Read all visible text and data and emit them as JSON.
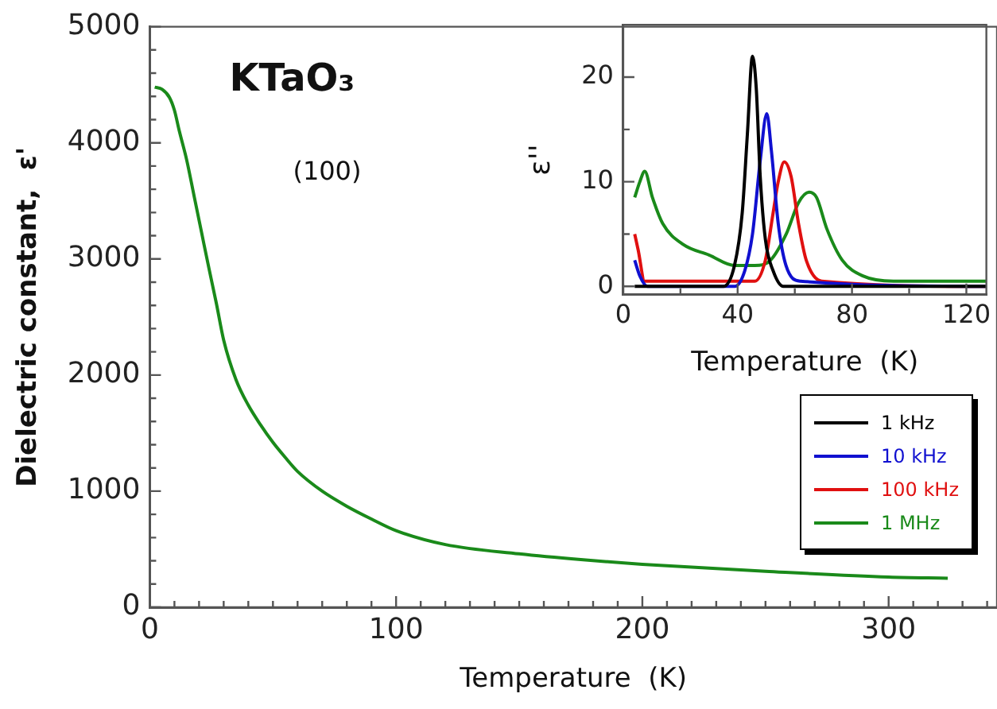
{
  "chart_data": [
    {
      "type": "line",
      "xlabel": "Temperature  (K)",
      "ylabel": "Dielectric constant,  ε'",
      "annotations": [
        "KTaO₃",
        "(100)"
      ],
      "xlim": [
        0,
        344
      ],
      "ylim": [
        0,
        5000
      ],
      "xticks": [
        0,
        {
          "value": 10,
          "label": null
        },
        {
          "value": 20,
          "label": null
        },
        {
          "value": 30,
          "label": null
        },
        {
          "value": 40,
          "label": null
        },
        {
          "value": 50,
          "label": null
        },
        {
          "value": 60,
          "label": null
        },
        {
          "value": 70,
          "label": null
        },
        {
          "value": 80,
          "label": null
        },
        {
          "value": 90,
          "label": null
        },
        100,
        {
          "value": 110,
          "label": null
        },
        {
          "value": 120,
          "label": null
        },
        {
          "value": 130,
          "label": null
        },
        {
          "value": 140,
          "label": null
        },
        {
          "value": 150,
          "label": null
        },
        {
          "value": 160,
          "label": null
        },
        {
          "value": 170,
          "label": null
        },
        {
          "value": 180,
          "label": null
        },
        {
          "value": 190,
          "label": null
        },
        200,
        {
          "value": 210,
          "label": null
        },
        {
          "value": 220,
          "label": null
        },
        {
          "value": 230,
          "label": null
        },
        {
          "value": 240,
          "label": null
        },
        {
          "value": 250,
          "label": null
        },
        {
          "value": 260,
          "label": null
        },
        {
          "value": 270,
          "label": null
        },
        {
          "value": 280,
          "label": null
        },
        {
          "value": 290,
          "label": null
        },
        300,
        {
          "value": 310,
          "label": null
        },
        {
          "value": 320,
          "label": null
        },
        {
          "value": 330,
          "label": null
        },
        {
          "value": 340,
          "label": null
        }
      ],
      "yticks": [
        0,
        {
          "value": 200,
          "label": null
        },
        {
          "value": 400,
          "label": null
        },
        {
          "value": 600,
          "label": null
        },
        {
          "value": 800,
          "label": null
        },
        1000,
        {
          "value": 1200,
          "label": null
        },
        {
          "value": 1400,
          "label": null
        },
        {
          "value": 1600,
          "label": null
        },
        {
          "value": 1800,
          "label": null
        },
        2000,
        {
          "value": 2200,
          "label": null
        },
        {
          "value": 2400,
          "label": null
        },
        {
          "value": 2600,
          "label": null
        },
        {
          "value": 2800,
          "label": null
        },
        3000,
        {
          "value": 3200,
          "label": null
        },
        {
          "value": 3400,
          "label": null
        },
        {
          "value": 3600,
          "label": null
        },
        {
          "value": 3800,
          "label": null
        },
        4000,
        {
          "value": 4200,
          "label": null
        },
        {
          "value": 4400,
          "label": null
        },
        {
          "value": 4600,
          "label": null
        },
        {
          "value": 4800,
          "label": null
        },
        5000
      ],
      "grid": false,
      "marker": "none",
      "line_style": "solid",
      "series": [
        {
          "color": "#1a8a1a",
          "x": [
            2,
            5,
            8,
            10,
            12,
            15,
            18,
            21,
            24,
            27,
            30,
            35,
            40,
            45,
            50,
            55,
            60,
            70,
            80,
            90,
            100,
            120,
            150,
            175,
            200,
            250,
            300,
            324
          ],
          "values": [
            4480,
            4460,
            4390,
            4280,
            4100,
            3850,
            3540,
            3230,
            2920,
            2620,
            2300,
            1960,
            1740,
            1570,
            1420,
            1290,
            1170,
            1000,
            870,
            760,
            660,
            540,
            460,
            410,
            370,
            310,
            260,
            250
          ]
        }
      ]
    },
    {
      "type": "line",
      "xlabel": "Temperature  (K)",
      "ylabel": "ε''",
      "xlim": [
        0,
        127
      ],
      "ylim": [
        -0.8,
        25
      ],
      "xticks": [
        0,
        {
          "value": 20,
          "label": null
        },
        40,
        {
          "value": 60,
          "label": null
        },
        80,
        {
          "value": 100,
          "label": null
        },
        120
      ],
      "yticks": [
        0,
        {
          "value": 5,
          "label": null
        },
        10,
        {
          "value": 15,
          "label": null
        },
        20
      ],
      "grid": false,
      "marker": "none",
      "line_style": "solid",
      "legend": "bottom right",
      "series": [
        {
          "name": "1 kHz",
          "color": "#000000",
          "x": [
            4,
            35,
            38.9,
            41.6,
            43.4,
            45.2,
            46.5,
            47.9,
            49.7,
            52.4,
            56,
            62,
            127
          ],
          "values": [
            0,
            0,
            2,
            7,
            14.5,
            22,
            19,
            10.5,
            4.5,
            1.5,
            0,
            0,
            0
          ]
        },
        {
          "name": "10 kHz",
          "color": "#1010d0",
          "x": [
            4,
            5.8,
            8.4,
            39,
            42.5,
            45.2,
            47.9,
            50.2,
            51.8,
            54.2,
            56.9,
            62,
            127
          ],
          "values": [
            2.5,
            1,
            0,
            0,
            1.5,
            5,
            12,
            16.5,
            13,
            6,
            2,
            0.5,
            0
          ]
        },
        {
          "name": "100 kHz",
          "color": "#e01010",
          "x": [
            4,
            5.2,
            7.5,
            46,
            49.7,
            52.4,
            54.2,
            56.3,
            58.7,
            61.3,
            64,
            69.4,
            127
          ],
          "values": [
            5,
            3.5,
            0.5,
            0.5,
            2.5,
            7,
            10,
            11.9,
            10.5,
            6,
            2.5,
            0.5,
            0
          ]
        },
        {
          "name": "1 MHz",
          "color": "#1a8a1a",
          "x": [
            4,
            5.8,
            7.5,
            10.2,
            13.8,
            21,
            30,
            39,
            46,
            51.5,
            57,
            61.3,
            65,
            67.6,
            71.2,
            76.6,
            83.8,
            94.5,
            127
          ],
          "values": [
            8.5,
            10,
            11,
            8.5,
            6,
            4,
            3,
            2,
            2,
            2.5,
            5,
            8,
            9,
            8.5,
            5.5,
            2.5,
            1,
            0.5,
            0.5
          ]
        }
      ]
    }
  ]
}
